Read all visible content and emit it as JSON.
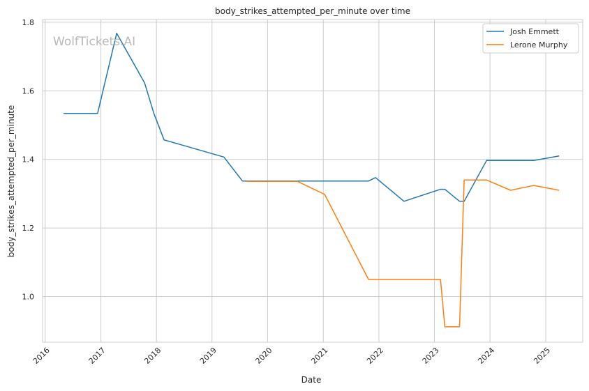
{
  "chart_data": {
    "type": "line",
    "title": "body_strikes_attempted_per_minute over time",
    "xlabel": "Date",
    "ylabel": "body_strikes_attempted_per_minute",
    "watermark": "WolfTickets.AI",
    "x_range": [
      "2015-12-15",
      "2025-09-01"
    ],
    "ylim": [
      0.867,
      1.808
    ],
    "x_ticks": [
      "2016",
      "2017",
      "2018",
      "2019",
      "2020",
      "2021",
      "2022",
      "2023",
      "2024",
      "2025"
    ],
    "y_ticks": [
      "1.0",
      "1.2",
      "1.4",
      "1.6",
      "1.8"
    ],
    "grid": true,
    "legend_position": "top-right",
    "series": [
      {
        "name": "Josh Emmett",
        "color": "#1f77b4",
        "points": [
          [
            "2016-05-01",
            1.534
          ],
          [
            "2016-12-10",
            1.534
          ],
          [
            "2017-04-15",
            1.768
          ],
          [
            "2017-10-15",
            1.623
          ],
          [
            "2017-12-15",
            1.534
          ],
          [
            "2018-02-20",
            1.457
          ],
          [
            "2019-03-20",
            1.407
          ],
          [
            "2019-07-20",
            1.337
          ],
          [
            "2020-07-15",
            1.337
          ],
          [
            "2021-10-25",
            1.337
          ],
          [
            "2021-12-10",
            1.347
          ],
          [
            "2022-06-15",
            1.278
          ],
          [
            "2023-02-10",
            1.313
          ],
          [
            "2023-03-10",
            1.313
          ],
          [
            "2023-06-15",
            1.278
          ],
          [
            "2023-07-15",
            1.278
          ],
          [
            "2023-12-10",
            1.397
          ],
          [
            "2024-10-15",
            1.397
          ],
          [
            "2025-03-30",
            1.41
          ]
        ]
      },
      {
        "name": "Lerone Murphy",
        "color": "#ff7f0e",
        "points": [
          [
            "2019-08-15",
            1.336
          ],
          [
            "2020-07-15",
            1.336
          ],
          [
            "2021-01-10",
            1.298
          ],
          [
            "2021-10-25",
            1.05
          ],
          [
            "2023-02-10",
            1.05
          ],
          [
            "2023-03-10",
            0.912
          ],
          [
            "2023-06-15",
            0.912
          ],
          [
            "2023-07-15",
            1.34
          ],
          [
            "2023-12-10",
            1.34
          ],
          [
            "2024-05-15",
            1.31
          ],
          [
            "2024-10-15",
            1.324
          ],
          [
            "2025-03-30",
            1.31
          ]
        ]
      }
    ]
  }
}
